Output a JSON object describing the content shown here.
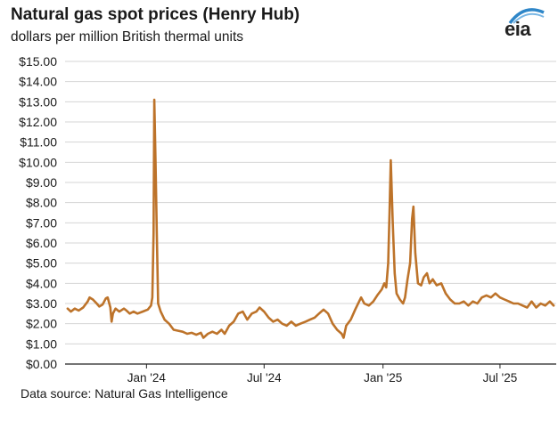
{
  "header": {
    "title": "Natural gas spot prices (Henry Hub)",
    "subtitle": "dollars per million British thermal units",
    "logo_text": "eia"
  },
  "footer": {
    "source": "Data source: Natural Gas Intelligence"
  },
  "chart_data": {
    "type": "line",
    "title": "Natural gas spot prices (Henry Hub)",
    "subtitle": "dollars per million British thermal units",
    "xlabel": "",
    "ylabel": "",
    "ylim": [
      0,
      15
    ],
    "yticks": [
      "$0.00",
      "$1.00",
      "$2.00",
      "$3.00",
      "$4.00",
      "$5.00",
      "$6.00",
      "$7.00",
      "$8.00",
      "$9.00",
      "$10.00",
      "$11.00",
      "$12.00",
      "$13.00",
      "$14.00",
      "$15.00"
    ],
    "xticks": [
      {
        "label": "Jan '24",
        "date": "2024-01-01"
      },
      {
        "label": "Jul '24",
        "date": "2024-07-01"
      },
      {
        "label": "Jan '25",
        "date": "2025-01-01"
      },
      {
        "label": "Jul '25",
        "date": "2025-07-01"
      }
    ],
    "xlim": [
      "2023-08-28",
      "2025-09-26"
    ],
    "grid": "horizontal",
    "line_color": "#bd732a",
    "series": [
      {
        "points": [
          [
            "2023-09-01",
            2.75
          ],
          [
            "2023-09-06",
            2.6
          ],
          [
            "2023-09-12",
            2.75
          ],
          [
            "2023-09-18",
            2.65
          ],
          [
            "2023-09-25",
            2.8
          ],
          [
            "2023-10-02",
            3.1
          ],
          [
            "2023-10-05",
            3.3
          ],
          [
            "2023-10-10",
            3.2
          ],
          [
            "2023-10-16",
            3.0
          ],
          [
            "2023-10-20",
            2.85
          ],
          [
            "2023-10-25",
            2.95
          ],
          [
            "2023-10-30",
            3.25
          ],
          [
            "2023-11-02",
            3.3
          ],
          [
            "2023-11-06",
            2.8
          ],
          [
            "2023-11-08",
            2.1
          ],
          [
            "2023-11-10",
            2.5
          ],
          [
            "2023-11-14",
            2.75
          ],
          [
            "2023-11-20",
            2.6
          ],
          [
            "2023-11-27",
            2.75
          ],
          [
            "2023-12-01",
            2.65
          ],
          [
            "2023-12-06",
            2.5
          ],
          [
            "2023-12-12",
            2.6
          ],
          [
            "2023-12-18",
            2.5
          ],
          [
            "2023-12-26",
            2.6
          ],
          [
            "2024-01-03",
            2.7
          ],
          [
            "2024-01-08",
            2.9
          ],
          [
            "2024-01-10",
            3.3
          ],
          [
            "2024-01-12",
            6.5
          ],
          [
            "2024-01-13",
            13.1
          ],
          [
            "2024-01-15",
            10.0
          ],
          [
            "2024-01-17",
            6.5
          ],
          [
            "2024-01-19",
            3.0
          ],
          [
            "2024-01-23",
            2.6
          ],
          [
            "2024-01-29",
            2.2
          ],
          [
            "2024-02-05",
            2.0
          ],
          [
            "2024-02-12",
            1.7
          ],
          [
            "2024-02-19",
            1.65
          ],
          [
            "2024-02-26",
            1.6
          ],
          [
            "2024-03-04",
            1.5
          ],
          [
            "2024-03-11",
            1.55
          ],
          [
            "2024-03-18",
            1.45
          ],
          [
            "2024-03-25",
            1.55
          ],
          [
            "2024-03-29",
            1.3
          ],
          [
            "2024-04-05",
            1.5
          ],
          [
            "2024-04-12",
            1.6
          ],
          [
            "2024-04-19",
            1.5
          ],
          [
            "2024-04-26",
            1.7
          ],
          [
            "2024-05-01",
            1.5
          ],
          [
            "2024-05-08",
            1.9
          ],
          [
            "2024-05-15",
            2.1
          ],
          [
            "2024-05-22",
            2.5
          ],
          [
            "2024-05-29",
            2.6
          ],
          [
            "2024-06-05",
            2.2
          ],
          [
            "2024-06-12",
            2.5
          ],
          [
            "2024-06-19",
            2.6
          ],
          [
            "2024-06-24",
            2.8
          ],
          [
            "2024-07-01",
            2.6
          ],
          [
            "2024-07-08",
            2.3
          ],
          [
            "2024-07-15",
            2.1
          ],
          [
            "2024-07-22",
            2.2
          ],
          [
            "2024-07-29",
            2.0
          ],
          [
            "2024-08-05",
            1.9
          ],
          [
            "2024-08-12",
            2.1
          ],
          [
            "2024-08-19",
            1.9
          ],
          [
            "2024-08-26",
            2.0
          ],
          [
            "2024-09-03",
            2.1
          ],
          [
            "2024-09-10",
            2.2
          ],
          [
            "2024-09-17",
            2.3
          ],
          [
            "2024-09-24",
            2.5
          ],
          [
            "2024-10-01",
            2.7
          ],
          [
            "2024-10-08",
            2.5
          ],
          [
            "2024-10-15",
            2.0
          ],
          [
            "2024-10-22",
            1.7
          ],
          [
            "2024-10-29",
            1.5
          ],
          [
            "2024-11-01",
            1.3
          ],
          [
            "2024-11-05",
            1.9
          ],
          [
            "2024-11-12",
            2.2
          ],
          [
            "2024-11-19",
            2.7
          ],
          [
            "2024-11-25",
            3.1
          ],
          [
            "2024-11-28",
            3.3
          ],
          [
            "2024-12-03",
            3.0
          ],
          [
            "2024-12-10",
            2.9
          ],
          [
            "2024-12-17",
            3.1
          ],
          [
            "2024-12-23",
            3.4
          ],
          [
            "2024-12-30",
            3.7
          ],
          [
            "2025-01-03",
            4.0
          ],
          [
            "2025-01-06",
            3.8
          ],
          [
            "2025-01-09",
            5.0
          ],
          [
            "2025-01-11",
            7.5
          ],
          [
            "2025-01-13",
            10.1
          ],
          [
            "2025-01-16",
            7.0
          ],
          [
            "2025-01-19",
            4.5
          ],
          [
            "2025-01-22",
            3.5
          ],
          [
            "2025-01-27",
            3.2
          ],
          [
            "2025-02-01",
            3.0
          ],
          [
            "2025-02-04",
            3.3
          ],
          [
            "2025-02-08",
            4.2
          ],
          [
            "2025-02-12",
            5.0
          ],
          [
            "2025-02-15",
            7.2
          ],
          [
            "2025-02-17",
            7.8
          ],
          [
            "2025-02-20",
            5.5
          ],
          [
            "2025-02-24",
            4.0
          ],
          [
            "2025-03-01",
            3.9
          ],
          [
            "2025-03-05",
            4.3
          ],
          [
            "2025-03-10",
            4.5
          ],
          [
            "2025-03-14",
            4.0
          ],
          [
            "2025-03-19",
            4.2
          ],
          [
            "2025-03-25",
            3.9
          ],
          [
            "2025-04-01",
            4.0
          ],
          [
            "2025-04-08",
            3.5
          ],
          [
            "2025-04-15",
            3.2
          ],
          [
            "2025-04-22",
            3.0
          ],
          [
            "2025-04-29",
            3.0
          ],
          [
            "2025-05-06",
            3.1
          ],
          [
            "2025-05-13",
            2.9
          ],
          [
            "2025-05-20",
            3.1
          ],
          [
            "2025-05-27",
            3.0
          ],
          [
            "2025-06-03",
            3.3
          ],
          [
            "2025-06-10",
            3.4
          ],
          [
            "2025-06-17",
            3.3
          ],
          [
            "2025-06-24",
            3.5
          ],
          [
            "2025-07-01",
            3.3
          ],
          [
            "2025-07-08",
            3.2
          ],
          [
            "2025-07-15",
            3.1
          ],
          [
            "2025-07-22",
            3.0
          ],
          [
            "2025-07-29",
            3.0
          ],
          [
            "2025-08-05",
            2.9
          ],
          [
            "2025-08-12",
            2.8
          ],
          [
            "2025-08-19",
            3.1
          ],
          [
            "2025-08-26",
            2.8
          ],
          [
            "2025-09-02",
            3.0
          ],
          [
            "2025-09-09",
            2.9
          ],
          [
            "2025-09-16",
            3.1
          ],
          [
            "2025-09-22",
            2.9
          ]
        ]
      }
    ]
  }
}
